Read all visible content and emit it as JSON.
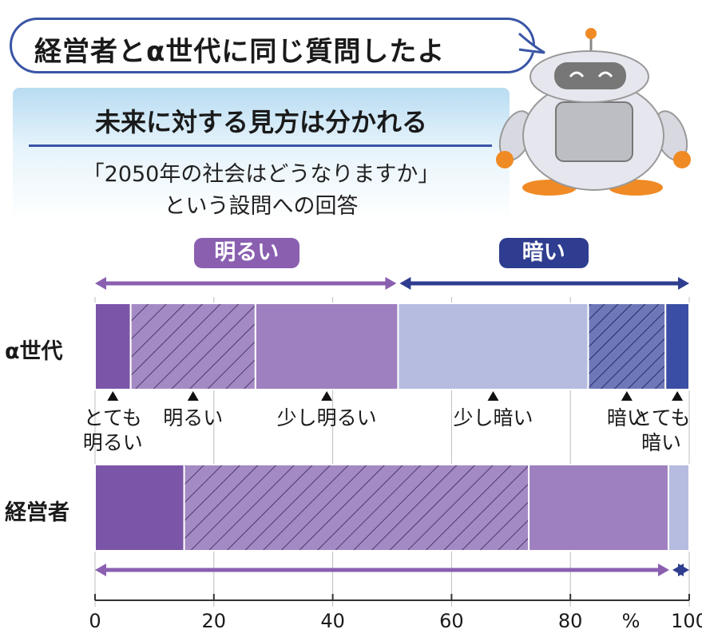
{
  "bubble": {
    "text": "経営者とα世代に同じ質問したよ"
  },
  "headline": "未来に対する見方は分かれる",
  "subtitle": {
    "line1": "「2050年の社会はどうなりますか」",
    "line2": "という設問への回答"
  },
  "groups": {
    "bright": "明るい",
    "dark": "暗い"
  },
  "segment_labels": {
    "very_bright": [
      "とても",
      "明るい"
    ],
    "bright": "明るい",
    "slightly_bright": "少し明るい",
    "slightly_dark": "少し暗い",
    "dark": "暗い",
    "very_dark": [
      "とても",
      "暗い"
    ]
  },
  "colors": {
    "accent_border": "#3a55a6",
    "very_bright": "#7b55a8",
    "bright": "#a48ac4",
    "slightly_bright": "#9e7fbf",
    "slightly_dark": "#b6bce0",
    "dark": "#6e78b8",
    "very_dark": "#3a4ea5",
    "bright_arrow": "#8a5fb0",
    "dark_arrow": "#2e3d8f",
    "grid": "#bdbdbd"
  },
  "chart_data": {
    "type": "bar",
    "orientation": "horizontal",
    "stacked": true,
    "categories": [
      "α世代",
      "経営者"
    ],
    "series": [
      {
        "name": "とても明るい",
        "values": [
          6,
          15
        ]
      },
      {
        "name": "明るい",
        "values": [
          21,
          58
        ]
      },
      {
        "name": "少し明るい",
        "values": [
          24,
          23.5
        ]
      },
      {
        "name": "少し暗い",
        "values": [
          32,
          3.5
        ]
      },
      {
        "name": "暗い",
        "values": [
          13,
          0
        ]
      },
      {
        "name": "とても暗い",
        "values": [
          4,
          0
        ]
      }
    ],
    "xlim": [
      0,
      100
    ],
    "x_ticks": [
      "0",
      "20",
      "40",
      "60",
      "80",
      "100"
    ],
    "x_unit": "%",
    "grid": true
  }
}
